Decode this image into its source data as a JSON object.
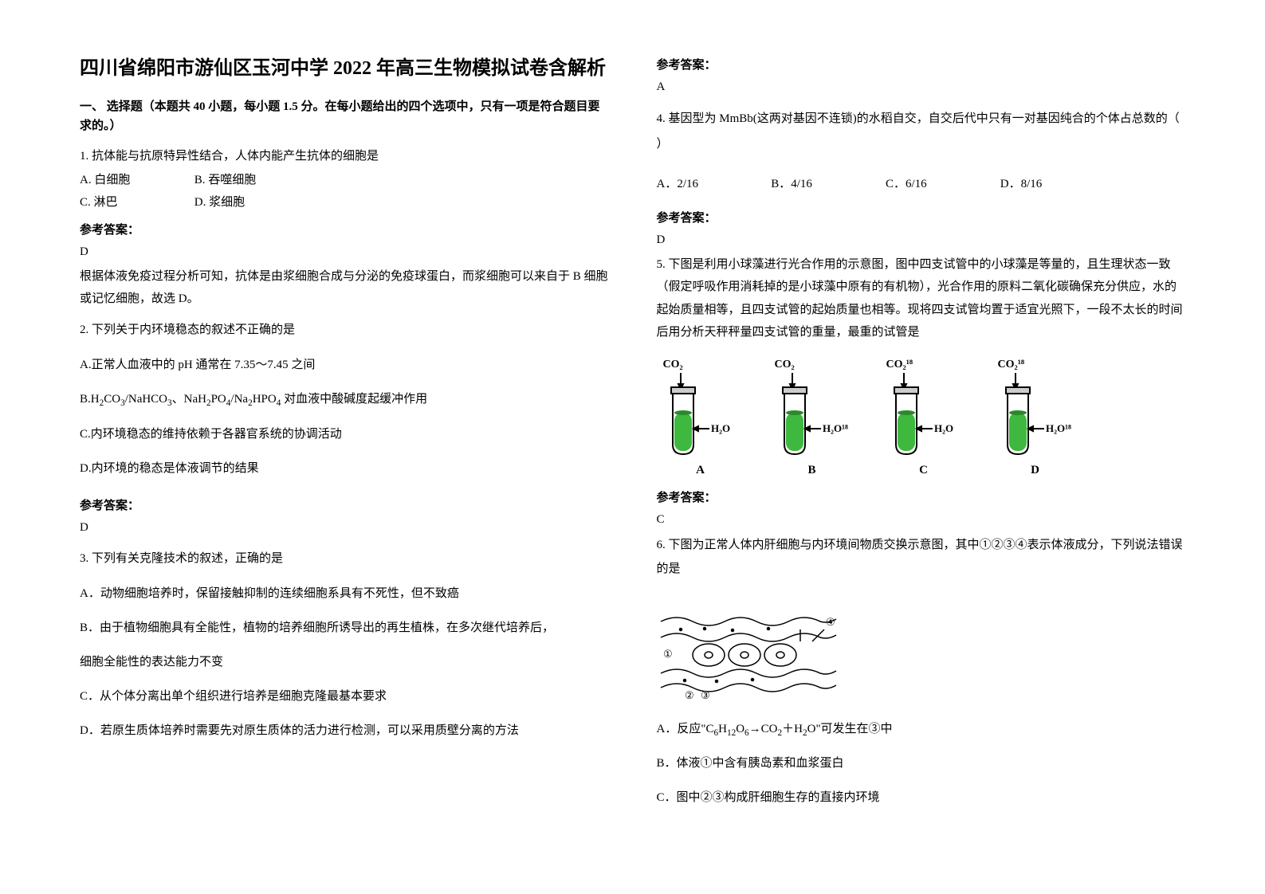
{
  "title": "四川省绵阳市游仙区玉河中学 2022 年高三生物模拟试卷含解析",
  "section1": "一、 选择题（本题共 40 小题，每小题 1.5 分。在每小题给出的四个选项中，只有一项是符合题目要求的。）",
  "answer_label": "参考答案：",
  "q1": {
    "stem": "1. 抗体能与抗原特异性结合，人体内能产生抗体的细胞是",
    "a": "A. 白细胞",
    "b": "B. 吞噬细胞",
    "c": "C. 淋巴",
    "d": "D. 浆细胞",
    "ans": "D",
    "explain": "根据体液免疫过程分析可知，抗体是由浆细胞合成与分泌的免疫球蛋白，而浆细胞可以来自于 B 细胞或记忆细胞，故选 D。"
  },
  "q2": {
    "stem": "2. 下列关于内环境稳态的叙述不正确的是",
    "a": "A.正常人血液中的 pH 通常在 7.35～7.45 之间",
    "b_pre": "B.H",
    "b_mid": "/NaHCO",
    "b_mid2": "、NaH",
    "b_mid3": "/Na",
    "b_post": " 对血液中酸碱度起缓冲作用",
    "c": "C.内环境稳态的维持依赖于各器官系统的协调活动",
    "d": "D.内环境的稳态是体液调节的结果",
    "ans": "D"
  },
  "q3": {
    "stem": "3. 下列有关克隆技术的叙述，正确的是",
    "a": "A．动物细胞培养时，保留接触抑制的连续细胞系具有不死性，但不致癌",
    "b": "B．由于植物细胞具有全能性，植物的培养细胞所诱导出的再生植株，在多次继代培养后，",
    "b2": "细胞全能性的表达能力不变",
    "c": "C．从个体分离出单个组织进行培养是细胞克隆最基本要求",
    "d": "D．若原生质体培养时需要先对原生质体的活力进行检测，可以采用质壁分离的方法"
  },
  "q3ans": "A",
  "q4": {
    "stem": "4. 基因型为 MmBb(这两对基因不连锁)的水稻自交，自交后代中只有一对基因纯合的个体占总数的（ ）",
    "a": "A．2/16",
    "b": "B．4/16",
    "c": "C．6/16",
    "d": "D．8/16",
    "ans": "D"
  },
  "q5": {
    "stem": "5. 下图是利用小球藻进行光合作用的示意图，图中四支试管中的小球藻是等量的，且生理状态一致（假定呼吸作用消耗掉的是小球藻中原有的有机物），光合作用的原料二氧化碳确保充分供应，水的起始质量相等，且四支试管的起始质量也相等。现将四支试管均置于适宜光照下，一段不太长的时间后用分析天秤秤量四支试管的重量，最重的试管是",
    "ans": "C"
  },
  "tubes": {
    "items": [
      {
        "top": "CO₂",
        "side": "H₂O",
        "letter": "A"
      },
      {
        "top": "CO₂",
        "side": "H₂O¹⁸",
        "letter": "B"
      },
      {
        "top": "CO₂¹⁸",
        "side": "H₂O",
        "letter": "C"
      },
      {
        "top": "CO₂¹⁸",
        "side": "H₂O¹⁸",
        "letter": "D"
      }
    ],
    "colors": {
      "tube_stroke": "#000000",
      "liquid_fill": "#3fb83f",
      "liquid_dark": "#2a8a2a",
      "cap_fill": "#cccccc"
    }
  },
  "q6": {
    "stem": "6. 下图为正常人体内肝细胞与内环境间物质交换示意图，其中①②③④表示体液成分，下列说法错误的是",
    "a_pre": "A．反应\"C",
    "a_mid": "→CO",
    "a_post": "＋H",
    "a_end": "\"可发生在③中",
    "b": "B．体液①中含有胰岛素和血浆蛋白",
    "c": "C．图中②③构成肝细胞生存的直接内环境"
  },
  "cell_diagram": {
    "stroke": "#000000",
    "labels": {
      "l1": "①",
      "l2": "②",
      "l3": "③",
      "l4": "④"
    }
  }
}
